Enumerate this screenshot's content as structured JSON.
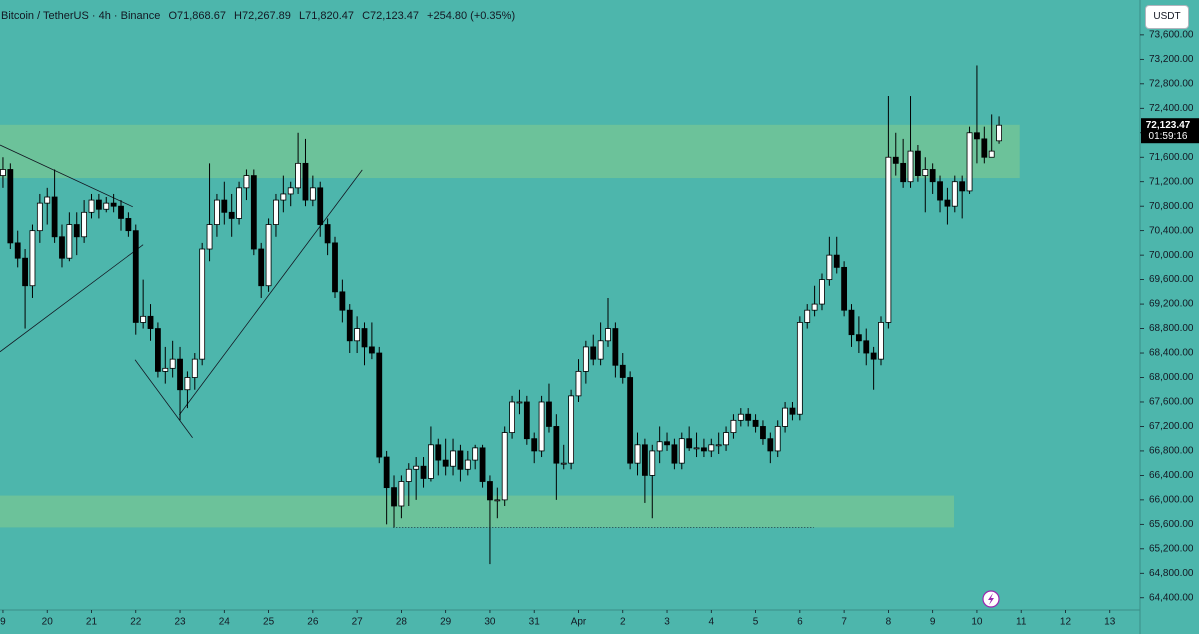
{
  "chart_data": {
    "type": "candlestick",
    "title": "Bitcoin / TetherUS · 4h · Binance",
    "ohlc_readout": [
      "O71,868.67",
      "H72,267.89",
      "L71,820.47",
      "C72,123.47",
      "+254.80 (+0.35%)"
    ],
    "currency": "USDT",
    "last_price": {
      "value": 72123.47,
      "label": "72,123.47"
    },
    "countdown": "01:59:16",
    "xlim": [
      -0.4,
      154.1
    ],
    "ylim": [
      64200,
      74170
    ],
    "xticks": [
      {
        "value": 0,
        "label": "9"
      },
      {
        "value": 6,
        "label": "20"
      },
      {
        "value": 12,
        "label": "21"
      },
      {
        "value": 18,
        "label": "22"
      },
      {
        "value": 24,
        "label": "23"
      },
      {
        "value": 30,
        "label": "24"
      },
      {
        "value": 36,
        "label": "25"
      },
      {
        "value": 42,
        "label": "26"
      },
      {
        "value": 48,
        "label": "27"
      },
      {
        "value": 54,
        "label": "28"
      },
      {
        "value": 60,
        "label": "29"
      },
      {
        "value": 66,
        "label": "30"
      },
      {
        "value": 72,
        "label": "31"
      },
      {
        "value": 78,
        "label": "Apr"
      },
      {
        "value": 84,
        "label": "2"
      },
      {
        "value": 90,
        "label": "3"
      },
      {
        "value": 96,
        "label": "4"
      },
      {
        "value": 102,
        "label": "5"
      },
      {
        "value": 108,
        "label": "6"
      },
      {
        "value": 114,
        "label": "7"
      },
      {
        "value": 120,
        "label": "8"
      },
      {
        "value": 126,
        "label": "9"
      },
      {
        "value": 132,
        "label": "10"
      },
      {
        "value": 138,
        "label": "11"
      },
      {
        "value": 144,
        "label": "12"
      },
      {
        "value": 150,
        "label": "13"
      }
    ],
    "yticks": [
      {
        "value": 64400,
        "label": "64,400.00"
      },
      {
        "value": 64800,
        "label": "64,800.00"
      },
      {
        "value": 65200,
        "label": "65,200.00"
      },
      {
        "value": 65600,
        "label": "65,600.00"
      },
      {
        "value": 66000,
        "label": "66,000.00"
      },
      {
        "value": 66400,
        "label": "66,400.00"
      },
      {
        "value": 66800,
        "label": "66,800.00"
      },
      {
        "value": 67200,
        "label": "67,200.00"
      },
      {
        "value": 67600,
        "label": "67,600.00"
      },
      {
        "value": 68000,
        "label": "68,000.00"
      },
      {
        "value": 68400,
        "label": "68,400.00"
      },
      {
        "value": 68800,
        "label": "68,800.00"
      },
      {
        "value": 69200,
        "label": "69,200.00"
      },
      {
        "value": 69600,
        "label": "69,600.00"
      },
      {
        "value": 70000,
        "label": "70,000.00"
      },
      {
        "value": 70400,
        "label": "70,400.00"
      },
      {
        "value": 70800,
        "label": "70,800.00"
      },
      {
        "value": 71200,
        "label": "71,200.00"
      },
      {
        "value": 71600,
        "label": "71,600.00"
      },
      {
        "value": 72000,
        "label": "72,000.00"
      },
      {
        "value": 72400,
        "label": "72,400.00"
      },
      {
        "value": 72800,
        "label": "72,800.00"
      },
      {
        "value": 73200,
        "label": "73,200.00"
      },
      {
        "value": 73600,
        "label": "73,600.00"
      }
    ],
    "up_color": "#ffffff",
    "down_color": "#000000",
    "zone_color": "#6cc29a",
    "zones": [
      {
        "top": 72130,
        "bottom": 71260,
        "end": 137.8
      },
      {
        "top": 66070,
        "bottom": 65550,
        "end": 128.9
      }
    ],
    "trendlines": [
      [
        -0.4,
        71800,
        17.6,
        70790
      ],
      [
        -0.4,
        68420,
        19,
        70170
      ],
      [
        17.9,
        68290,
        25.7,
        67015
      ],
      [
        23.9,
        67390,
        48.7,
        71394
      ]
    ],
    "dotted_line": [
      52.9,
      65550,
      109.9,
      65550
    ],
    "x": [
      0,
      1,
      2,
      3,
      4,
      5,
      6,
      7,
      8,
      9,
      10,
      11,
      12,
      13,
      14,
      15,
      16,
      17,
      18,
      19,
      20,
      21,
      22,
      23,
      24,
      25,
      26,
      27,
      28,
      29,
      30,
      31,
      32,
      33,
      34,
      35,
      36,
      37,
      38,
      39,
      40,
      41,
      42,
      43,
      44,
      45,
      46,
      47,
      48,
      49,
      50,
      51,
      52,
      53,
      54,
      55,
      56,
      57,
      58,
      59,
      60,
      61,
      62,
      63,
      64,
      65,
      66,
      67,
      68,
      69,
      70,
      71,
      72,
      73,
      74,
      75,
      76,
      77,
      78,
      79,
      80,
      81,
      82,
      83,
      84,
      85,
      86,
      87,
      88,
      89,
      90,
      91,
      92,
      93,
      94,
      95,
      96,
      97,
      98,
      99,
      100,
      101,
      102,
      103,
      104,
      105,
      106,
      107,
      108,
      109,
      110,
      111,
      112,
      113,
      114,
      115,
      116,
      117,
      118,
      119,
      120,
      121,
      122,
      123,
      124,
      125,
      126,
      127,
      128,
      129,
      130,
      131,
      132,
      133,
      134,
      135
    ],
    "candles": [
      [
        71300,
        71600,
        71100,
        71400
      ],
      [
        71400,
        71500,
        70100,
        70200
      ],
      [
        70200,
        70400,
        69800,
        69950
      ],
      [
        69950,
        70100,
        68800,
        69500
      ],
      [
        69500,
        70500,
        69300,
        70400
      ],
      [
        70400,
        71000,
        70200,
        70850
      ],
      [
        70850,
        71100,
        70500,
        70950
      ],
      [
        70950,
        71400,
        70200,
        70300
      ],
      [
        70300,
        70500,
        69800,
        69950
      ],
      [
        69950,
        70700,
        69900,
        70500
      ],
      [
        70500,
        70700,
        70000,
        70300
      ],
      [
        70300,
        70900,
        70200,
        70700
      ],
      [
        70700,
        71000,
        70600,
        70900
      ],
      [
        70900,
        71000,
        70600,
        70750
      ],
      [
        70750,
        70950,
        70700,
        70850
      ],
      [
        70850,
        71000,
        70700,
        70800
      ],
      [
        70800,
        70900,
        70400,
        70600
      ],
      [
        70600,
        70700,
        70300,
        70400
      ],
      [
        70400,
        70500,
        68700,
        68900
      ],
      [
        68900,
        69600,
        68800,
        69000
      ],
      [
        69000,
        69200,
        68600,
        68800
      ],
      [
        68800,
        68900,
        68000,
        68100
      ],
      [
        68100,
        68500,
        67900,
        68150
      ],
      [
        68150,
        68600,
        68000,
        68300
      ],
      [
        68300,
        68500,
        67300,
        67800
      ],
      [
        67800,
        68100,
        67500,
        68000
      ],
      [
        68000,
        68400,
        67800,
        68300
      ],
      [
        68300,
        70200,
        68200,
        70100
      ],
      [
        70100,
        71500,
        69900,
        70500
      ],
      [
        70500,
        71000,
        70300,
        70900
      ],
      [
        70900,
        71200,
        70500,
        70700
      ],
      [
        70700,
        71000,
        70300,
        70600
      ],
      [
        70600,
        71200,
        70500,
        71100
      ],
      [
        71100,
        71400,
        70900,
        71300
      ],
      [
        71300,
        71400,
        70000,
        70100
      ],
      [
        70100,
        70200,
        69300,
        69500
      ],
      [
        69500,
        70600,
        69400,
        70500
      ],
      [
        70500,
        71000,
        70300,
        70900
      ],
      [
        70900,
        71300,
        70700,
        71000
      ],
      [
        71000,
        71200,
        70800,
        71100
      ],
      [
        71100,
        72000,
        71000,
        71500
      ],
      [
        71500,
        71900,
        70800,
        70900
      ],
      [
        70900,
        71300,
        70800,
        71100
      ],
      [
        71100,
        71200,
        70300,
        70500
      ],
      [
        70500,
        70600,
        70000,
        70200
      ],
      [
        70200,
        70300,
        69300,
        69400
      ],
      [
        69400,
        69600,
        68900,
        69100
      ],
      [
        69100,
        69200,
        68400,
        68600
      ],
      [
        68600,
        69000,
        68400,
        68800
      ],
      [
        68800,
        68900,
        68200,
        68500
      ],
      [
        68500,
        68900,
        68300,
        68400
      ],
      [
        68400,
        68500,
        66600,
        66700
      ],
      [
        66700,
        66800,
        65600,
        66200
      ],
      [
        66200,
        66400,
        65550,
        65900
      ],
      [
        65900,
        66400,
        65700,
        66300
      ],
      [
        66300,
        66600,
        65900,
        66500
      ],
      [
        66500,
        66700,
        66000,
        66550
      ],
      [
        66550,
        66700,
        66200,
        66350
      ],
      [
        66350,
        67200,
        66300,
        66900
      ],
      [
        66900,
        67000,
        66400,
        66650
      ],
      [
        66650,
        67000,
        66400,
        66550
      ],
      [
        66550,
        67000,
        66400,
        66800
      ],
      [
        66800,
        66900,
        66300,
        66500
      ],
      [
        66500,
        66800,
        66400,
        66650
      ],
      [
        66650,
        66900,
        66500,
        66850
      ],
      [
        66850,
        66900,
        66200,
        66300
      ],
      [
        66300,
        66400,
        64950,
        66000
      ],
      [
        66000,
        66200,
        65700,
        66000
      ],
      [
        66000,
        67200,
        65900,
        67100
      ],
      [
        67100,
        67700,
        67000,
        67600
      ],
      [
        67600,
        67800,
        67400,
        67600
      ],
      [
        67600,
        67700,
        66900,
        67000
      ],
      [
        67000,
        67100,
        66600,
        66800
      ],
      [
        66800,
        67700,
        66700,
        67600
      ],
      [
        67600,
        67900,
        67100,
        67200
      ],
      [
        67200,
        67400,
        66000,
        66600
      ],
      [
        66600,
        66900,
        66500,
        66600
      ],
      [
        66600,
        67800,
        66500,
        67700
      ],
      [
        67700,
        68300,
        67600,
        68100
      ],
      [
        68100,
        68600,
        67900,
        68500
      ],
      [
        68500,
        68700,
        68200,
        68300
      ],
      [
        68300,
        68900,
        68200,
        68600
      ],
      [
        68600,
        69300,
        68500,
        68800
      ],
      [
        68800,
        68900,
        68000,
        68200
      ],
      [
        68200,
        68400,
        67900,
        68000
      ],
      [
        68000,
        68100,
        66500,
        66600
      ],
      [
        66600,
        67100,
        66400,
        66900
      ],
      [
        66900,
        67000,
        65950,
        66400
      ],
      [
        66400,
        66900,
        65700,
        66800
      ],
      [
        66800,
        67200,
        66600,
        66950
      ],
      [
        66950,
        67100,
        66800,
        66900
      ],
      [
        66900,
        67000,
        66500,
        66600
      ],
      [
        66600,
        67100,
        66500,
        67000
      ],
      [
        67000,
        67200,
        66800,
        66850
      ],
      [
        66850,
        67100,
        66700,
        66850
      ],
      [
        66850,
        67000,
        66700,
        66800
      ],
      [
        66800,
        67000,
        66700,
        66900
      ],
      [
        66900,
        67100,
        66750,
        66900
      ],
      [
        66900,
        67200,
        66800,
        67100
      ],
      [
        67100,
        67400,
        67000,
        67300
      ],
      [
        67300,
        67500,
        67200,
        67400
      ],
      [
        67400,
        67500,
        67200,
        67300
      ],
      [
        67300,
        67400,
        67100,
        67200
      ],
      [
        67200,
        67300,
        66900,
        67000
      ],
      [
        67000,
        67100,
        66600,
        66800
      ],
      [
        66800,
        67300,
        66700,
        67200
      ],
      [
        67200,
        67600,
        67100,
        67500
      ],
      [
        67500,
        67600,
        67300,
        67400
      ],
      [
        67400,
        69000,
        67300,
        68900
      ],
      [
        68900,
        69200,
        68800,
        69100
      ],
      [
        69100,
        69500,
        69000,
        69200
      ],
      [
        69200,
        69700,
        69100,
        69600
      ],
      [
        69600,
        70300,
        69500,
        70000
      ],
      [
        70000,
        70300,
        69700,
        69800
      ],
      [
        69800,
        69900,
        69000,
        69100
      ],
      [
        69100,
        69200,
        68500,
        68700
      ],
      [
        68700,
        69000,
        68400,
        68600
      ],
      [
        68600,
        68800,
        68200,
        68400
      ],
      [
        68400,
        68500,
        67800,
        68300
      ],
      [
        68300,
        69000,
        68200,
        68900
      ],
      [
        68900,
        72600,
        68800,
        71600
      ],
      [
        71600,
        72000,
        71300,
        71500
      ],
      [
        71500,
        71900,
        71100,
        71200
      ],
      [
        71200,
        72600,
        71100,
        71700
      ],
      [
        71700,
        71800,
        71200,
        71300
      ],
      [
        71300,
        71600,
        70700,
        71400
      ],
      [
        71400,
        71500,
        71000,
        71200
      ],
      [
        71200,
        71300,
        70700,
        70900
      ],
      [
        70900,
        71100,
        70500,
        70800
      ],
      [
        70800,
        71300,
        70700,
        71200
      ],
      [
        71200,
        71300,
        70600,
        71050
      ],
      [
        71050,
        72100,
        71000,
        72000
      ],
      [
        72000,
        73100,
        71500,
        71900
      ],
      [
        71900,
        72100,
        71500,
        71600
      ],
      [
        71600,
        72300,
        71600,
        71700
      ],
      [
        71868.67,
        72267.89,
        71820.47,
        72123.47
      ]
    ]
  }
}
